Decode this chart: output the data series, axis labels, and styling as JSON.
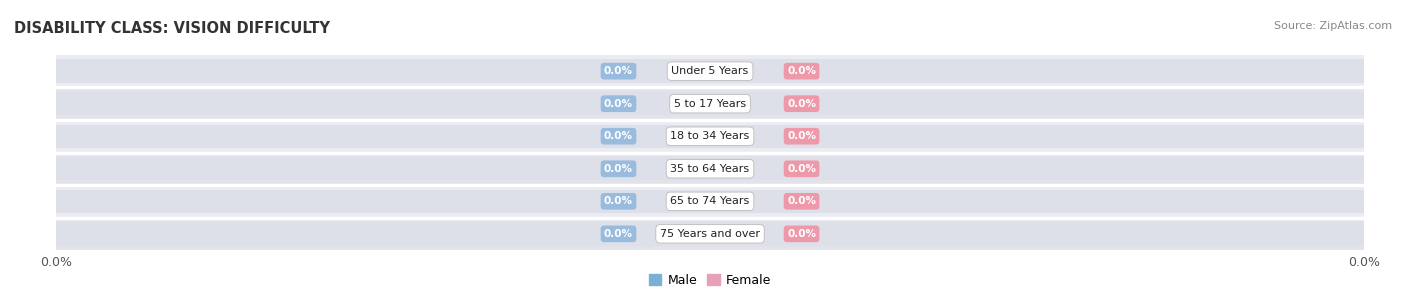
{
  "title": "DISABILITY CLASS: VISION DIFFICULTY",
  "source": "Source: ZipAtlas.com",
  "categories": [
    "Under 5 Years",
    "5 to 17 Years",
    "18 to 34 Years",
    "35 to 64 Years",
    "65 to 74 Years",
    "75 Years and over"
  ],
  "male_values": [
    0.0,
    0.0,
    0.0,
    0.0,
    0.0,
    0.0
  ],
  "female_values": [
    0.0,
    0.0,
    0.0,
    0.0,
    0.0,
    0.0
  ],
  "male_pill_color": "#99bbdd",
  "female_pill_color": "#ee99aa",
  "bar_bg_color": "#dde0e8",
  "row_colors": [
    "#ebebf2",
    "#e2e2ea"
  ],
  "label_bg_male": "#aabbd4",
  "label_bg_female": "#e8a0b8",
  "title_fontsize": 10.5,
  "source_fontsize": 8,
  "figure_bg": "#ffffff",
  "axis_label_left": "0.0%",
  "axis_label_right": "0.0%",
  "bar_height": 0.72,
  "legend_male_color": "#7bafd4",
  "legend_female_color": "#e8a0b8"
}
